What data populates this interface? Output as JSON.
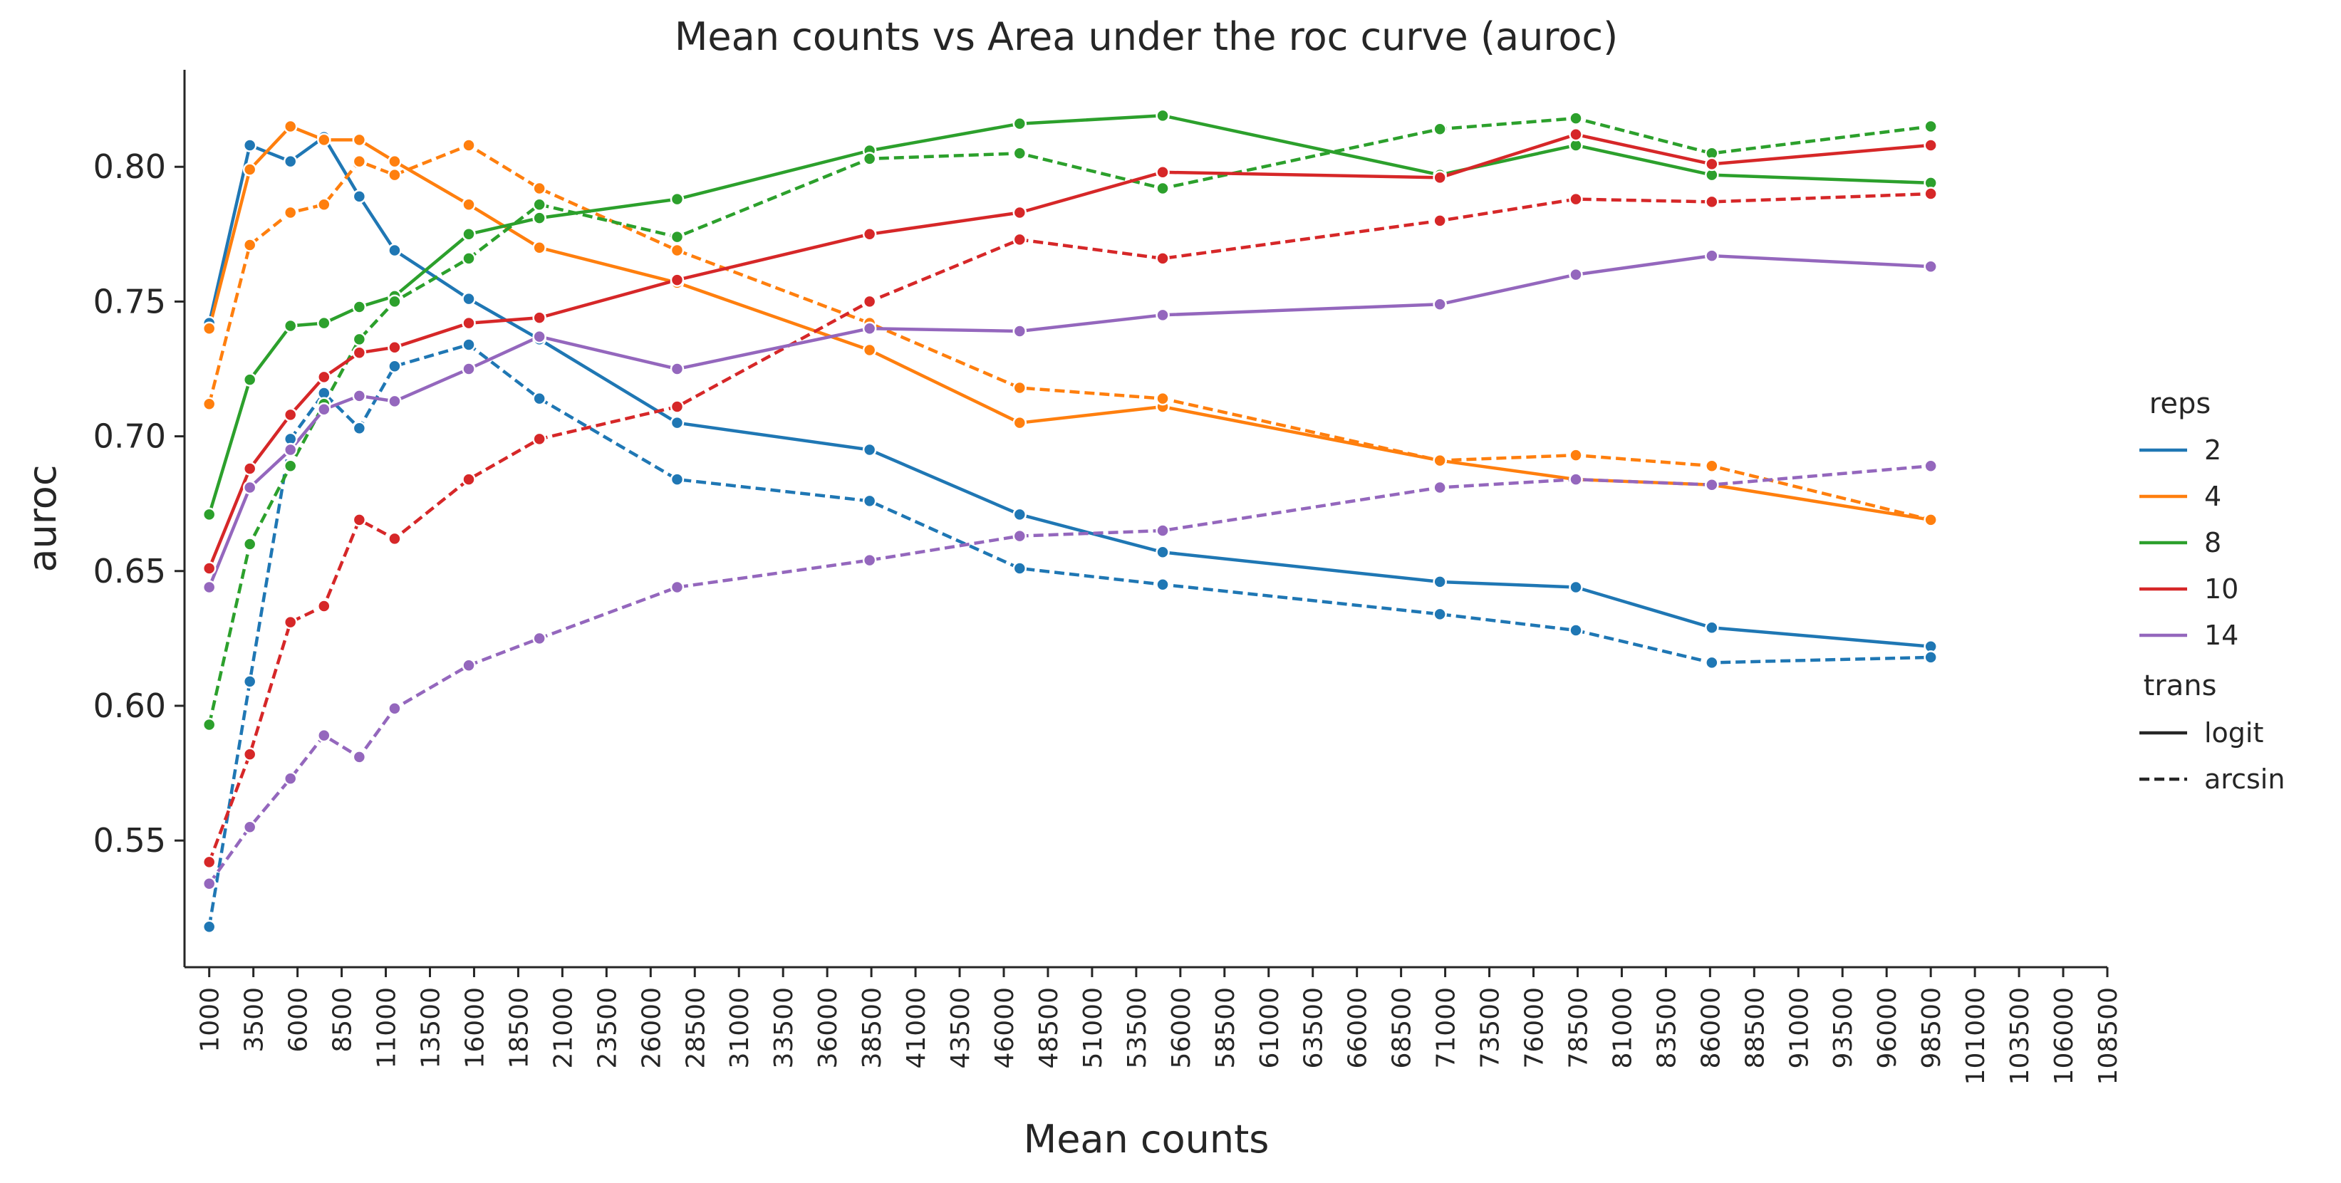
{
  "chart_data": {
    "type": "line",
    "title": "Mean counts vs Area under the roc curve (auroc)",
    "xlabel": "Mean counts",
    "ylabel": "auroc",
    "xlim": [
      -400,
      108500
    ],
    "ylim": [
      0.503,
      0.836
    ],
    "x_ticks": [
      1000,
      3500,
      6000,
      8500,
      11000,
      13500,
      16000,
      18500,
      21000,
      23500,
      26000,
      28500,
      31000,
      33500,
      36000,
      38500,
      41000,
      43500,
      46000,
      48500,
      51000,
      53500,
      56000,
      58500,
      61000,
      63500,
      66000,
      68500,
      71000,
      73500,
      76000,
      78500,
      81000,
      83500,
      86000,
      88500,
      91000,
      93500,
      96000,
      98500,
      101000,
      103500,
      106000,
      108500
    ],
    "y_ticks": [
      0.55,
      0.6,
      0.65,
      0.7,
      0.75,
      0.8
    ],
    "y_tick_labels": [
      "0.55",
      "0.60",
      "0.65",
      "0.70",
      "0.75",
      "0.80"
    ],
    "grid": false,
    "legend_position": "right",
    "legend": {
      "hue_title": "reps",
      "style_title": "trans",
      "hue_entries": [
        "2",
        "4",
        "8",
        "10",
        "14"
      ],
      "style_entries": [
        {
          "label": "logit",
          "dash": "solid"
        },
        {
          "label": "arcsin",
          "dash": "dashed"
        }
      ]
    },
    "x": [
      1000,
      3300,
      5600,
      7500,
      9500,
      11500,
      15700,
      19700,
      27500,
      38400,
      46900,
      55000,
      70700,
      78400,
      86100,
      98500
    ],
    "series": [
      {
        "reps": "2",
        "trans": "logit",
        "color": "#1f77b4",
        "dash": "solid",
        "values": [
          0.742,
          0.808,
          0.802,
          0.811,
          0.789,
          0.769,
          0.751,
          0.736,
          0.705,
          0.695,
          0.671,
          0.657,
          0.646,
          0.644,
          0.629,
          0.622
        ]
      },
      {
        "reps": "2",
        "trans": "arcsin",
        "color": "#1f77b4",
        "dash": "dashed",
        "values": [
          0.518,
          0.609,
          0.699,
          0.716,
          0.703,
          0.726,
          0.734,
          0.714,
          0.684,
          0.676,
          0.651,
          0.645,
          0.634,
          0.628,
          0.616,
          0.618
        ]
      },
      {
        "reps": "4",
        "trans": "logit",
        "color": "#ff7f0e",
        "dash": "solid",
        "values": [
          0.74,
          0.799,
          0.815,
          0.81,
          0.81,
          0.802,
          0.786,
          0.77,
          0.757,
          0.732,
          0.705,
          0.711,
          0.691,
          0.684,
          0.682,
          0.669
        ]
      },
      {
        "reps": "4",
        "trans": "arcsin",
        "color": "#ff7f0e",
        "dash": "dashed",
        "values": [
          0.712,
          0.771,
          0.783,
          0.786,
          0.802,
          0.797,
          0.808,
          0.792,
          0.769,
          0.742,
          0.718,
          0.714,
          0.691,
          0.693,
          0.689,
          0.669
        ]
      },
      {
        "reps": "8",
        "trans": "logit",
        "color": "#2ca02c",
        "dash": "solid",
        "values": [
          0.671,
          0.721,
          0.741,
          0.742,
          0.748,
          0.752,
          0.775,
          0.781,
          0.788,
          0.806,
          0.816,
          0.819,
          0.797,
          0.808,
          0.797,
          0.794
        ]
      },
      {
        "reps": "8",
        "trans": "arcsin",
        "color": "#2ca02c",
        "dash": "dashed",
        "values": [
          0.593,
          0.66,
          0.689,
          0.712,
          0.736,
          0.75,
          0.766,
          0.786,
          0.774,
          0.803,
          0.805,
          0.792,
          0.814,
          0.818,
          0.805,
          0.815
        ]
      },
      {
        "reps": "10",
        "trans": "logit",
        "color": "#d62728",
        "dash": "solid",
        "values": [
          0.651,
          0.688,
          0.708,
          0.722,
          0.731,
          0.733,
          0.742,
          0.744,
          0.758,
          0.775,
          0.783,
          0.798,
          0.796,
          0.812,
          0.801,
          0.808
        ]
      },
      {
        "reps": "10",
        "trans": "arcsin",
        "color": "#d62728",
        "dash": "dashed",
        "values": [
          0.542,
          0.582,
          0.631,
          0.637,
          0.669,
          0.662,
          0.684,
          0.699,
          0.711,
          0.75,
          0.773,
          0.766,
          0.78,
          0.788,
          0.787,
          0.79
        ]
      },
      {
        "reps": "14",
        "trans": "logit",
        "color": "#9467bd",
        "dash": "solid",
        "values": [
          0.644,
          0.681,
          0.695,
          0.71,
          0.715,
          0.713,
          0.725,
          0.737,
          0.725,
          0.74,
          0.739,
          0.745,
          0.749,
          0.76,
          0.767,
          0.763
        ]
      },
      {
        "reps": "14",
        "trans": "arcsin",
        "color": "#9467bd",
        "dash": "dashed",
        "values": [
          0.534,
          0.555,
          0.573,
          0.589,
          0.581,
          0.599,
          0.615,
          0.625,
          0.644,
          0.654,
          0.663,
          0.665,
          0.681,
          0.684,
          0.682,
          0.689
        ]
      }
    ]
  }
}
